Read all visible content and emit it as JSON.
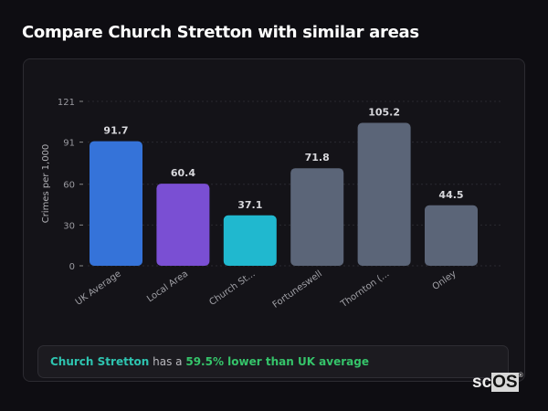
{
  "title": "Compare Church Stretton with similar areas",
  "chart_data": {
    "type": "bar",
    "title": "",
    "xlabel": "",
    "ylabel": "Crimes per 1,000",
    "ylim": [
      0,
      121
    ],
    "yticks": [
      0,
      30,
      60,
      91,
      121
    ],
    "grid": true,
    "categories": [
      "UK Average",
      "Local Area",
      "Church St...",
      "Fortuneswell",
      "Thornton (...",
      "Onley"
    ],
    "values": [
      91.7,
      60.4,
      37.1,
      71.8,
      105.2,
      44.5
    ],
    "data_labels": [
      "91.7",
      "60.4",
      "37.1",
      "71.8",
      "105.2",
      "44.5"
    ],
    "colors": [
      "#3573d9",
      "#7a4fd3",
      "#20b8cf",
      "#5b6578",
      "#5b6578",
      "#5b6578"
    ]
  },
  "summary": {
    "area": "Church Stretton",
    "middle": " has a ",
    "comparison": "59.5% lower than UK average"
  },
  "logo": {
    "text": "scOS"
  }
}
